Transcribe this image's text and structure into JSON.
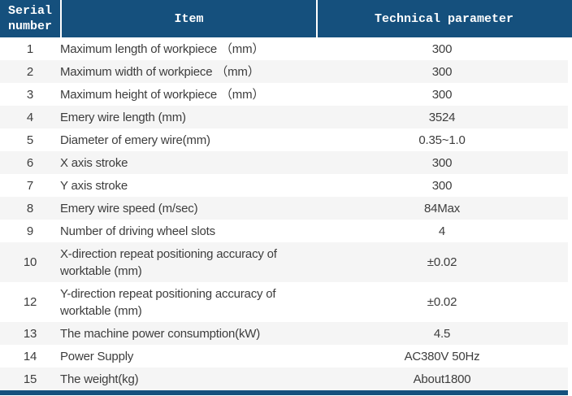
{
  "table": {
    "columns": [
      {
        "key": "serial",
        "label": "Serial number"
      },
      {
        "key": "item",
        "label": "Item"
      },
      {
        "key": "param",
        "label": "Technical parameter"
      }
    ],
    "rows": [
      {
        "serial": "1",
        "item": "Maximum length of workpiece （mm）",
        "value": "300"
      },
      {
        "serial": "2",
        "item": "Maximum width of workpiece （mm）",
        "value": "300"
      },
      {
        "serial": "3",
        "item": "Maximum height of workpiece （mm）",
        "value": "300"
      },
      {
        "serial": "4",
        "item": "Emery wire length (mm)",
        "value": "3524"
      },
      {
        "serial": "5",
        "item": "Diameter of emery wire(mm)",
        "value": "0.35~1.0"
      },
      {
        "serial": "6",
        "item": "X axis stroke",
        "value": "300"
      },
      {
        "serial": "7",
        "item": "Y axis stroke",
        "value": "300"
      },
      {
        "serial": "8",
        "item": "Emery wire speed (m/sec)",
        "value": "84Max"
      },
      {
        "serial": "9",
        "item": "Number of driving wheel slots",
        "value": "4"
      },
      {
        "serial": "10",
        "item": "X-direction repeat positioning accuracy of\nworktable (mm)",
        "value": "±0.02"
      },
      {
        "serial": "12",
        "item": "Y-direction repeat positioning accuracy of\nworktable (mm)",
        "value": "±0.02"
      },
      {
        "serial": "13",
        "item": "The machine power consumption(kW)",
        "value": "4.5"
      },
      {
        "serial": "14",
        "item": "Power Supply",
        "value": "AC380V 50Hz"
      },
      {
        "serial": "15",
        "item": "The weight(kg)",
        "value": "About1800"
      }
    ]
  },
  "colors": {
    "header_bg": "#15507D",
    "header_text": "#FFFFFF",
    "row_bg": "#FFFFFF",
    "row_alt_bg": "#F5F5F5",
    "body_text": "#3D3D3D",
    "bottom_bar": "#15507D"
  }
}
